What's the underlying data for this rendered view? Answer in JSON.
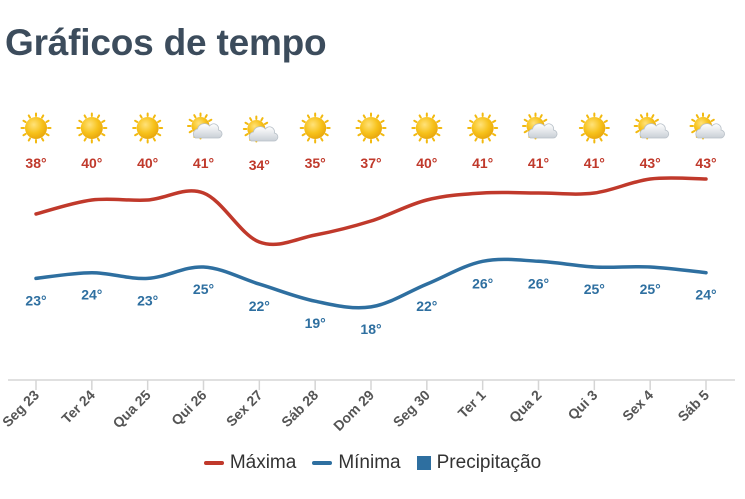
{
  "page": {
    "title": "Gráficos de tempo"
  },
  "colors": {
    "max_line": "#c0392b",
    "min_line": "#2e6fa0",
    "precip": "#2e6fa0",
    "axis": "#d5d5d5",
    "tick_text": "#555555",
    "max_label": "#c0392b",
    "min_label": "#2e6fa0"
  },
  "chart_data": {
    "type": "line",
    "categories": [
      "Seg 23",
      "Ter 24",
      "Qua 25",
      "Qui 26",
      "Sex 27",
      "Sáb 28",
      "Dom 29",
      "Seg 30",
      "Ter 1",
      "Qua 2",
      "Qui 3",
      "Sex 4",
      "Sáb 5"
    ],
    "icons": [
      "sun-icon",
      "sun-icon",
      "sun-icon",
      "sun-cloud-icon",
      "sun-cloud-icon",
      "sun-icon",
      "sun-icon",
      "sun-icon",
      "sun-icon",
      "sun-cloud-icon",
      "sun-icon",
      "sun-cloud-icon",
      "sun-cloud-icon"
    ],
    "unit": "°",
    "series": [
      {
        "name": "Máxima",
        "values": [
          38,
          40,
          40,
          41,
          34,
          35,
          37,
          40,
          41,
          41,
          41,
          43,
          43
        ]
      },
      {
        "name": "Mínima",
        "values": [
          23,
          24,
          23,
          25,
          22,
          19,
          18,
          22,
          26,
          26,
          25,
          25,
          24
        ]
      }
    ],
    "precipitation": {
      "name": "Precipitação",
      "values": []
    },
    "legend": "bottom-center",
    "grid": false
  }
}
